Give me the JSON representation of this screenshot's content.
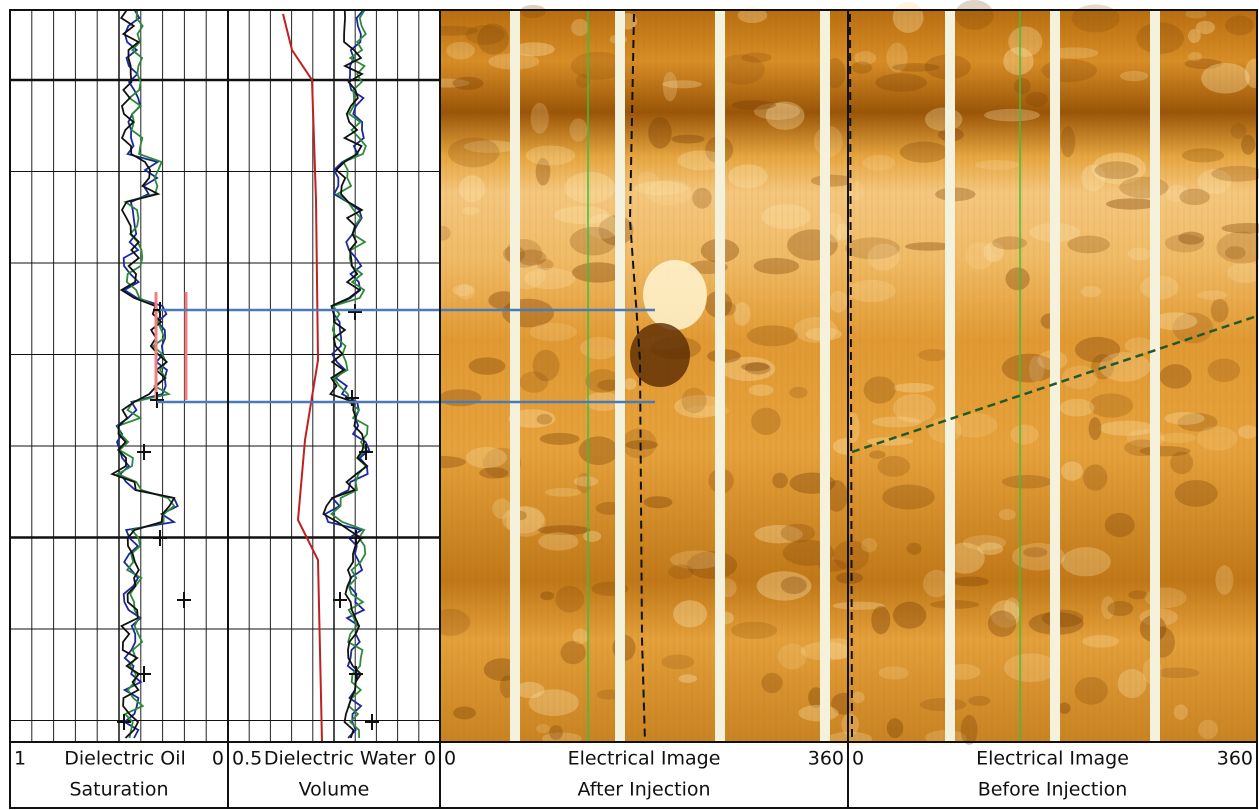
{
  "tracks": [
    {
      "scale_left": 1,
      "title": "Dielectric Oil",
      "subtitle": "Saturation",
      "scale_right": 0
    },
    {
      "scale_left": 0.5,
      "title": "Dielectric Water",
      "subtitle": "Volume",
      "scale_right": 0
    },
    {
      "scale_left": 0,
      "title": "Electrical Image",
      "subtitle": "After Injection",
      "scale_right": 360
    },
    {
      "scale_left": 0,
      "title": "Electrical Image",
      "subtitle": "Before Injection",
      "scale_right": 360
    }
  ]
}
